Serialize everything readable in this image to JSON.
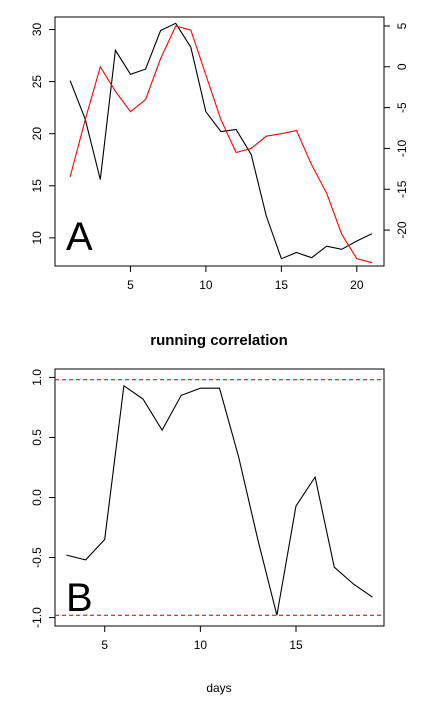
{
  "chart_data": [
    {
      "type": "line",
      "panel_label": "A",
      "title": "",
      "xlabel": "",
      "ylabel_left": "",
      "ylabel_right": "",
      "xlim": [
        0.0,
        21.8
      ],
      "ylim_left": [
        7.3,
        31.2
      ],
      "ylim_right": [
        -24.4,
        6.1
      ],
      "x_ticks": [
        "5",
        "10",
        "15",
        "20"
      ],
      "y_ticks_left": [
        "10",
        "15",
        "20",
        "25",
        "30"
      ],
      "y_ticks_right": [
        "-20",
        "-15",
        "-10",
        "-5",
        "0",
        "5"
      ],
      "series": [
        {
          "axis": "left",
          "color": "#000000",
          "x": [
            1,
            2,
            3,
            4,
            5,
            6,
            7,
            8,
            9,
            10,
            11,
            12,
            13,
            14,
            15,
            16,
            17,
            18,
            19,
            20,
            21
          ],
          "values": [
            25.1,
            21.4,
            15.6,
            28.0,
            25.7,
            26.2,
            29.9,
            30.6,
            28.3,
            22.1,
            20.2,
            20.4,
            18.0,
            12.1,
            8.0,
            8.6,
            8.1,
            9.2,
            8.9,
            9.7,
            10.4
          ]
        },
        {
          "axis": "right",
          "color": "#ff0000",
          "x": [
            1,
            2,
            3,
            4,
            5,
            6,
            7,
            8,
            9,
            10,
            11,
            12,
            13,
            14,
            15,
            16,
            17,
            18,
            19,
            20,
            21
          ],
          "values": [
            -13.5,
            -6.5,
            0.0,
            -3.0,
            -5.5,
            -4.0,
            1.0,
            5.0,
            4.5,
            -1.0,
            -6.5,
            -10.5,
            -10.0,
            -8.5,
            -8.2,
            -7.8,
            -12.0,
            -15.5,
            -20.5,
            -23.5,
            -24.0
          ]
        }
      ]
    },
    {
      "type": "line",
      "panel_label": "B",
      "title": "running correlation",
      "xlabel": "days",
      "ylabel": "",
      "xlim": [
        2.4,
        19.6
      ],
      "ylim": [
        -1.07,
        1.07
      ],
      "x_ticks": [
        "5",
        "10",
        "15"
      ],
      "y_ticks": [
        "-1.0",
        "-0.5",
        "0.0",
        "0.5",
        "1.0"
      ],
      "reference_lines": [
        0.98,
        -0.98
      ],
      "reference_color": "#cc0000",
      "series": [
        {
          "color": "#000000",
          "x": [
            3,
            4,
            5,
            6,
            7,
            8,
            9,
            10,
            11,
            12,
            13,
            14,
            15,
            16,
            17,
            18,
            19
          ],
          "values": [
            -0.48,
            -0.52,
            -0.35,
            0.93,
            0.82,
            0.56,
            0.85,
            0.91,
            0.91,
            0.34,
            -0.35,
            -0.98,
            -0.07,
            0.17,
            -0.58,
            -0.72,
            -0.83
          ]
        }
      ]
    }
  ]
}
